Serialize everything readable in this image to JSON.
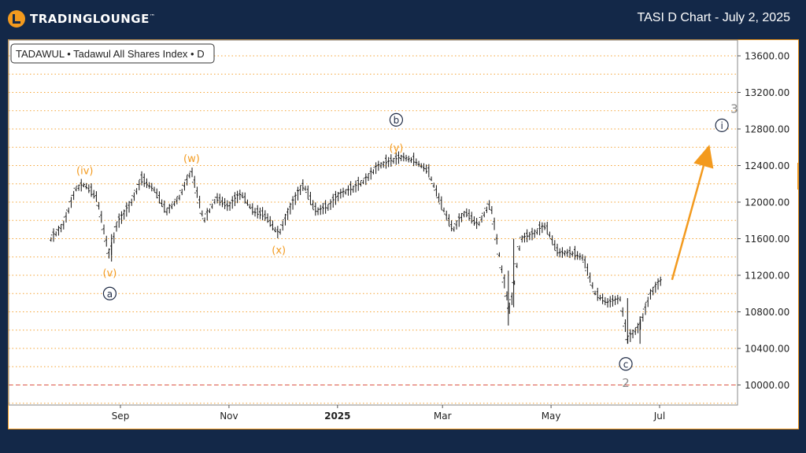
{
  "header": {
    "logo_text": "TRADINGLOUNGE",
    "logo_tm": "™",
    "chart_title": "TASI D Chart - July 2, 2025"
  },
  "legend": {
    "symbol_label": "TADAWUL • Tadawul All Shares Index • D"
  },
  "colors": {
    "background": "#132848",
    "accent": "#f39a1e",
    "gridline": "#f39a1e",
    "wave_label_orange": "#f39a1e",
    "wave_label_navy": "#1e2a44",
    "wave_label_grey": "#8a8a8a",
    "reference_line": "#d9534f"
  },
  "chart_data": {
    "type": "ohlc",
    "title": "TASI D Chart - July 2, 2025",
    "ylim": [
      9800,
      13800
    ],
    "y_ticks": [
      10000,
      10400,
      10800,
      11200,
      11600,
      12000,
      12400,
      12800,
      13200,
      13600
    ],
    "y_tick_labels": [
      "10000.00",
      "10400.00",
      "10800.00",
      "11200.00",
      "11600.00",
      "12000.00",
      "12400.00",
      "12800.00",
      "13200.00",
      "13600.00"
    ],
    "x_tick_labels": [
      "Sep",
      "Nov",
      "2025",
      "Mar",
      "May",
      "Jul"
    ],
    "reference_line": 10000,
    "price_path": [
      [
        "2024-07-24",
        11600
      ],
      [
        "2024-07-31",
        11750
      ],
      [
        "2024-08-07",
        12150
      ],
      [
        "2024-08-12",
        12200
      ],
      [
        "2024-08-19",
        12050
      ],
      [
        "2024-08-26",
        11400
      ],
      [
        "2024-08-30",
        11750
      ],
      [
        "2024-09-06",
        11950
      ],
      [
        "2024-09-13",
        12250
      ],
      [
        "2024-09-20",
        12150
      ],
      [
        "2024-09-27",
        11900
      ],
      [
        "2024-10-04",
        12050
      ],
      [
        "2024-10-11",
        12350
      ],
      [
        "2024-10-18",
        11800
      ],
      [
        "2024-10-25",
        12050
      ],
      [
        "2024-11-01",
        11950
      ],
      [
        "2024-11-08",
        12100
      ],
      [
        "2024-11-15",
        11900
      ],
      [
        "2024-11-22",
        11850
      ],
      [
        "2024-11-29",
        11650
      ],
      [
        "2024-12-06",
        11950
      ],
      [
        "2024-12-13",
        12200
      ],
      [
        "2024-12-20",
        11900
      ],
      [
        "2024-12-27",
        11950
      ],
      [
        "2025-01-03",
        12100
      ],
      [
        "2025-01-10",
        12150
      ],
      [
        "2025-01-17",
        12250
      ],
      [
        "2025-01-24",
        12400
      ],
      [
        "2025-01-31",
        12450
      ],
      [
        "2025-02-07",
        12500
      ],
      [
        "2025-02-14",
        12450
      ],
      [
        "2025-02-21",
        12350
      ],
      [
        "2025-02-28",
        12000
      ],
      [
        "2025-03-07",
        11700
      ],
      [
        "2025-03-14",
        11900
      ],
      [
        "2025-03-21",
        11750
      ],
      [
        "2025-03-28",
        12000
      ],
      [
        "2025-04-04",
        11200
      ],
      [
        "2025-04-08",
        10800
      ],
      [
        "2025-04-14",
        11600
      ],
      [
        "2025-04-21",
        11650
      ],
      [
        "2025-04-28",
        11750
      ],
      [
        "2025-05-05",
        11450
      ],
      [
        "2025-05-12",
        11450
      ],
      [
        "2025-05-19",
        11400
      ],
      [
        "2025-05-26",
        11000
      ],
      [
        "2025-06-02",
        10900
      ],
      [
        "2025-06-09",
        10950
      ],
      [
        "2025-06-13",
        10500
      ],
      [
        "2025-06-20",
        10650
      ],
      [
        "2025-06-26",
        11000
      ],
      [
        "2025-07-02",
        11150
      ]
    ],
    "wave_labels": [
      {
        "text": "(iv)",
        "x": "2024-08-12",
        "y": 12350,
        "style": "orange"
      },
      {
        "text": "(v)",
        "x": "2024-08-26",
        "y": 11230,
        "style": "orange"
      },
      {
        "text": "a",
        "x": "2024-08-26",
        "y": 11000,
        "style": "circle"
      },
      {
        "text": "(w)",
        "x": "2024-10-11",
        "y": 12480,
        "style": "orange"
      },
      {
        "text": "(x)",
        "x": "2024-11-29",
        "y": 11480,
        "style": "orange"
      },
      {
        "text": "(y)",
        "x": "2025-02-03",
        "y": 12600,
        "style": "orange"
      },
      {
        "text": "b",
        "x": "2025-02-03",
        "y": 12900,
        "style": "circle"
      },
      {
        "text": "c",
        "x": "2025-06-12",
        "y": 10230,
        "style": "circle"
      },
      {
        "text": "2",
        "x": "2025-06-12",
        "y": 10020,
        "style": "grey"
      },
      {
        "text": "i",
        "x": "2025-08-05",
        "y": 12840,
        "style": "circle"
      },
      {
        "text": "3",
        "x": "2025-08-12",
        "y": 13020,
        "style": "grey"
      }
    ],
    "projection": {
      "from": [
        "2025-07-08",
        11150
      ],
      "to": [
        "2025-07-29",
        12800
      ]
    }
  }
}
